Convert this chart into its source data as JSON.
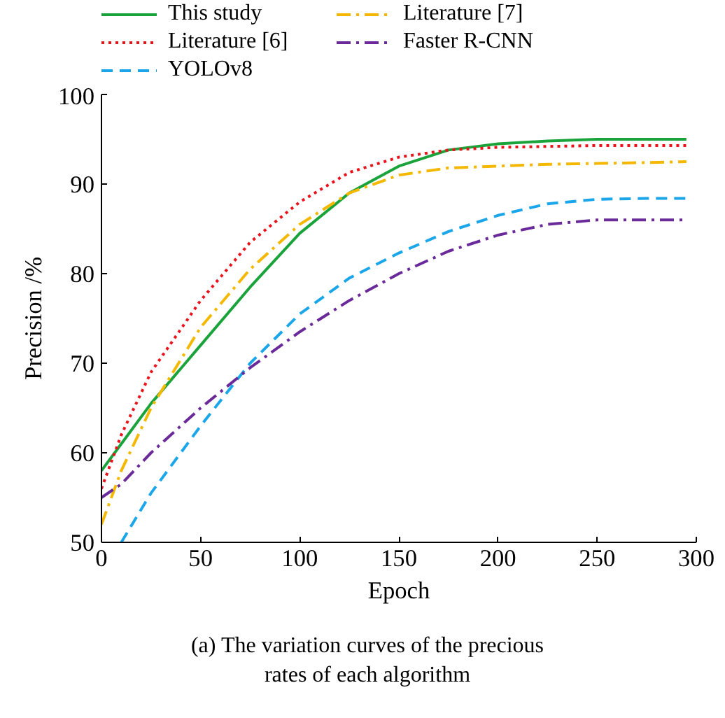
{
  "chart_data": {
    "type": "line",
    "xlabel": "Epoch",
    "ylabel": "Precision /%",
    "xlim": [
      0,
      300
    ],
    "ylim": [
      50,
      100
    ],
    "xticks": [
      0,
      50,
      100,
      150,
      200,
      250,
      300
    ],
    "yticks": [
      50,
      60,
      70,
      80,
      90,
      100
    ],
    "grid": false,
    "legend": "top",
    "marker": "none",
    "annotations": [
      "(a) The variation curves of the precious\nrates of each algorithm"
    ],
    "series": [
      {
        "name": "This study",
        "color": "#1aa33a",
        "line_style": "solid",
        "x": [
          0,
          10,
          25,
          50,
          75,
          100,
          125,
          150,
          175,
          200,
          225,
          250,
          275,
          295
        ],
        "values": [
          58,
          61,
          65.5,
          72,
          78.5,
          84.5,
          89,
          92,
          93.8,
          94.5,
          94.8,
          95,
          95,
          95
        ]
      },
      {
        "name": "Literature [6]",
        "color": "#e8131b",
        "line_style": "dotted",
        "x": [
          0,
          10,
          25,
          50,
          75,
          100,
          125,
          150,
          175,
          200,
          225,
          250,
          275,
          295
        ],
        "values": [
          56,
          62,
          69,
          77,
          83.5,
          88,
          91.3,
          93,
          93.8,
          94.1,
          94.2,
          94.3,
          94.3,
          94.3
        ]
      },
      {
        "name": "YOLOv8",
        "color": "#1aa6e8",
        "line_style": "dashed",
        "x": [
          10,
          25,
          50,
          75,
          100,
          125,
          150,
          175,
          200,
          225,
          250,
          275,
          295
        ],
        "values": [
          50,
          55.5,
          63,
          70,
          75.5,
          79.5,
          82.3,
          84.7,
          86.5,
          87.8,
          88.3,
          88.4,
          88.4
        ]
      },
      {
        "name": "Literature [7]",
        "color": "#f5b800",
        "line_style": "dashdot",
        "x": [
          0,
          10,
          25,
          50,
          75,
          100,
          125,
          150,
          175,
          200,
          225,
          250,
          275,
          295
        ],
        "values": [
          52,
          58,
          65,
          74,
          80.5,
          85.5,
          89,
          91,
          91.8,
          92,
          92.2,
          92.3,
          92.4,
          92.5
        ]
      },
      {
        "name": "Faster R-CNN",
        "color": "#6a2a9a",
        "line_style": "dashdot",
        "x": [
          0,
          10,
          25,
          50,
          75,
          100,
          125,
          150,
          175,
          200,
          225,
          250,
          275,
          295
        ],
        "values": [
          55,
          56.5,
          60,
          65,
          69.5,
          73.5,
          77,
          80,
          82.5,
          84.3,
          85.5,
          86,
          86,
          86
        ]
      }
    ]
  }
}
